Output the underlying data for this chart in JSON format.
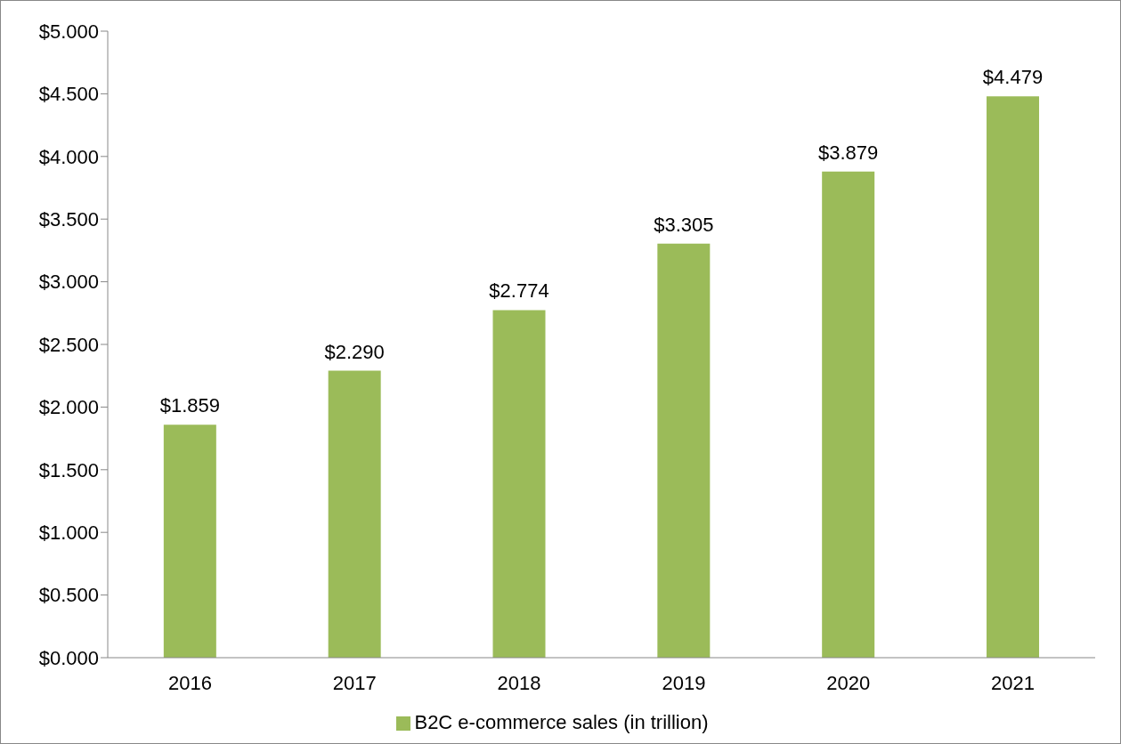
{
  "chart_data": {
    "type": "bar",
    "categories": [
      "2016",
      "2017",
      "2018",
      "2019",
      "2020",
      "2021"
    ],
    "series": [
      {
        "name": "B2C e-commerce sales (in trillion)",
        "color": "#9bbb59",
        "values": [
          1.859,
          2.29,
          2.774,
          3.305,
          3.879,
          4.479
        ],
        "value_labels": [
          "$1.859",
          "$2.290",
          "$2.774",
          "$3.305",
          "$3.879",
          "$4.479"
        ]
      }
    ],
    "ylim": [
      0,
      5
    ],
    "yticks": [
      {
        "value": 0,
        "label": "$0.000"
      },
      {
        "value": 0.5,
        "label": "$0.500"
      },
      {
        "value": 1,
        "label": "$1.000"
      },
      {
        "value": 1.5,
        "label": "$1.500"
      },
      {
        "value": 2,
        "label": "$2.000"
      },
      {
        "value": 2.5,
        "label": "$2.500"
      },
      {
        "value": 3,
        "label": "$3.000"
      },
      {
        "value": 3.5,
        "label": "$3.500"
      },
      {
        "value": 4,
        "label": "$4.000"
      },
      {
        "value": 4.5,
        "label": "$4.500"
      },
      {
        "value": 5,
        "label": "$5.000"
      }
    ],
    "grid": false,
    "legend": "bottom"
  }
}
